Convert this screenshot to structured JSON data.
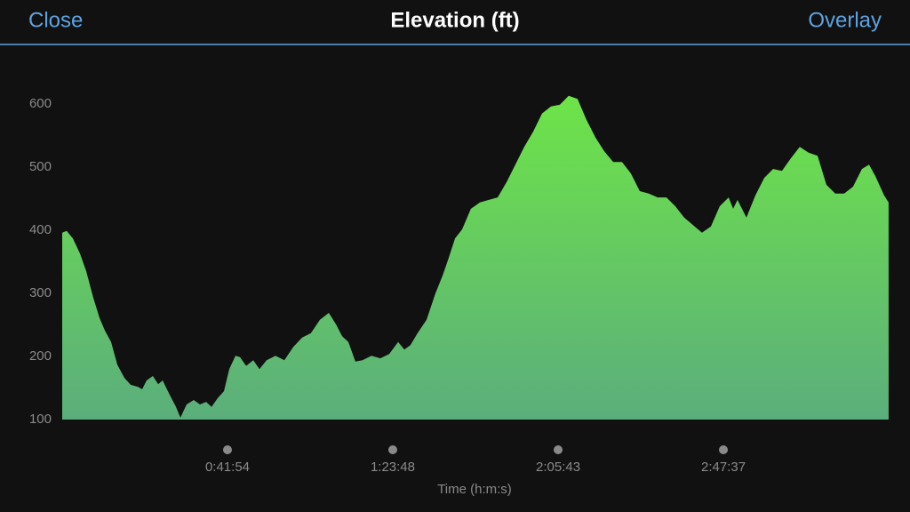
{
  "header": {
    "close": "Close",
    "title": "Elevation (ft)",
    "overlay": "Overlay"
  },
  "chart_data": {
    "type": "area",
    "x_label": "Time (h:m:s)",
    "color_top": "#6ee448",
    "color_bottom": "#5bae7c",
    "x": [
      0,
      68,
      162,
      270,
      365,
      473,
      568,
      649,
      743,
      838,
      946,
      1041,
      1149,
      1216,
      1284,
      1379,
      1460,
      1527,
      1622,
      1730,
      1798,
      1892,
      2000,
      2095,
      2190,
      2271,
      2365,
      2460,
      2541,
      2636,
      2703,
      2798,
      2906,
      3001,
      3109,
      3244,
      3379,
      3514,
      3649,
      3784,
      3920,
      4055,
      4163,
      4258,
      4352,
      4460,
      4568,
      4704,
      4839,
      4974,
      5109,
      5204,
      5298,
      5406,
      5542,
      5677,
      5785,
      5879,
      5974,
      6082,
      6217,
      6353,
      6488,
      6623,
      6758,
      6893,
      7028,
      7163,
      7299,
      7434,
      7569,
      7704,
      7839,
      7974,
      8110,
      8245,
      8380,
      8515,
      8650,
      8785,
      8921,
      9056,
      9191,
      9326,
      9461,
      9596,
      9731,
      9867,
      10002,
      10137,
      10205,
      10272,
      10407,
      10543,
      10678,
      10813,
      10948,
      11083,
      11218,
      11353,
      11489,
      11624,
      11759,
      11894,
      12029,
      12164,
      12272,
      12367,
      12502,
      12570
    ],
    "values": [
      396,
      399,
      387,
      363,
      335,
      293,
      261,
      241,
      223,
      187,
      166,
      155,
      152,
      148,
      162,
      169,
      156,
      162,
      142,
      120,
      103,
      124,
      131,
      124,
      128,
      120,
      134,
      145,
      180,
      201,
      199,
      185,
      194,
      180,
      194,
      201,
      194,
      215,
      230,
      237,
      258,
      269,
      251,
      232,
      223,
      192,
      194,
      201,
      197,
      204,
      223,
      211,
      218,
      237,
      258,
      300,
      328,
      356,
      387,
      401,
      434,
      444,
      448,
      452,
      476,
      504,
      532,
      556,
      585,
      596,
      599,
      613,
      608,
      575,
      547,
      525,
      508,
      508,
      490,
      462,
      458,
      452,
      452,
      438,
      420,
      408,
      396,
      406,
      438,
      452,
      434,
      448,
      420,
      455,
      483,
      497,
      494,
      514,
      532,
      523,
      518,
      472,
      458,
      458,
      469,
      497,
      504,
      486,
      455,
      444
    ],
    "xlim": [
      0,
      12571
    ],
    "ylim": [
      100,
      650
    ],
    "yticks": [
      100,
      200,
      300,
      400,
      500,
      600
    ],
    "xticks": [
      {
        "value": 2514,
        "label": "0:41:54"
      },
      {
        "value": 5028,
        "label": "1:23:48"
      },
      {
        "value": 7543,
        "label": "2:05:43"
      },
      {
        "value": 10057,
        "label": "2:47:37"
      }
    ]
  }
}
